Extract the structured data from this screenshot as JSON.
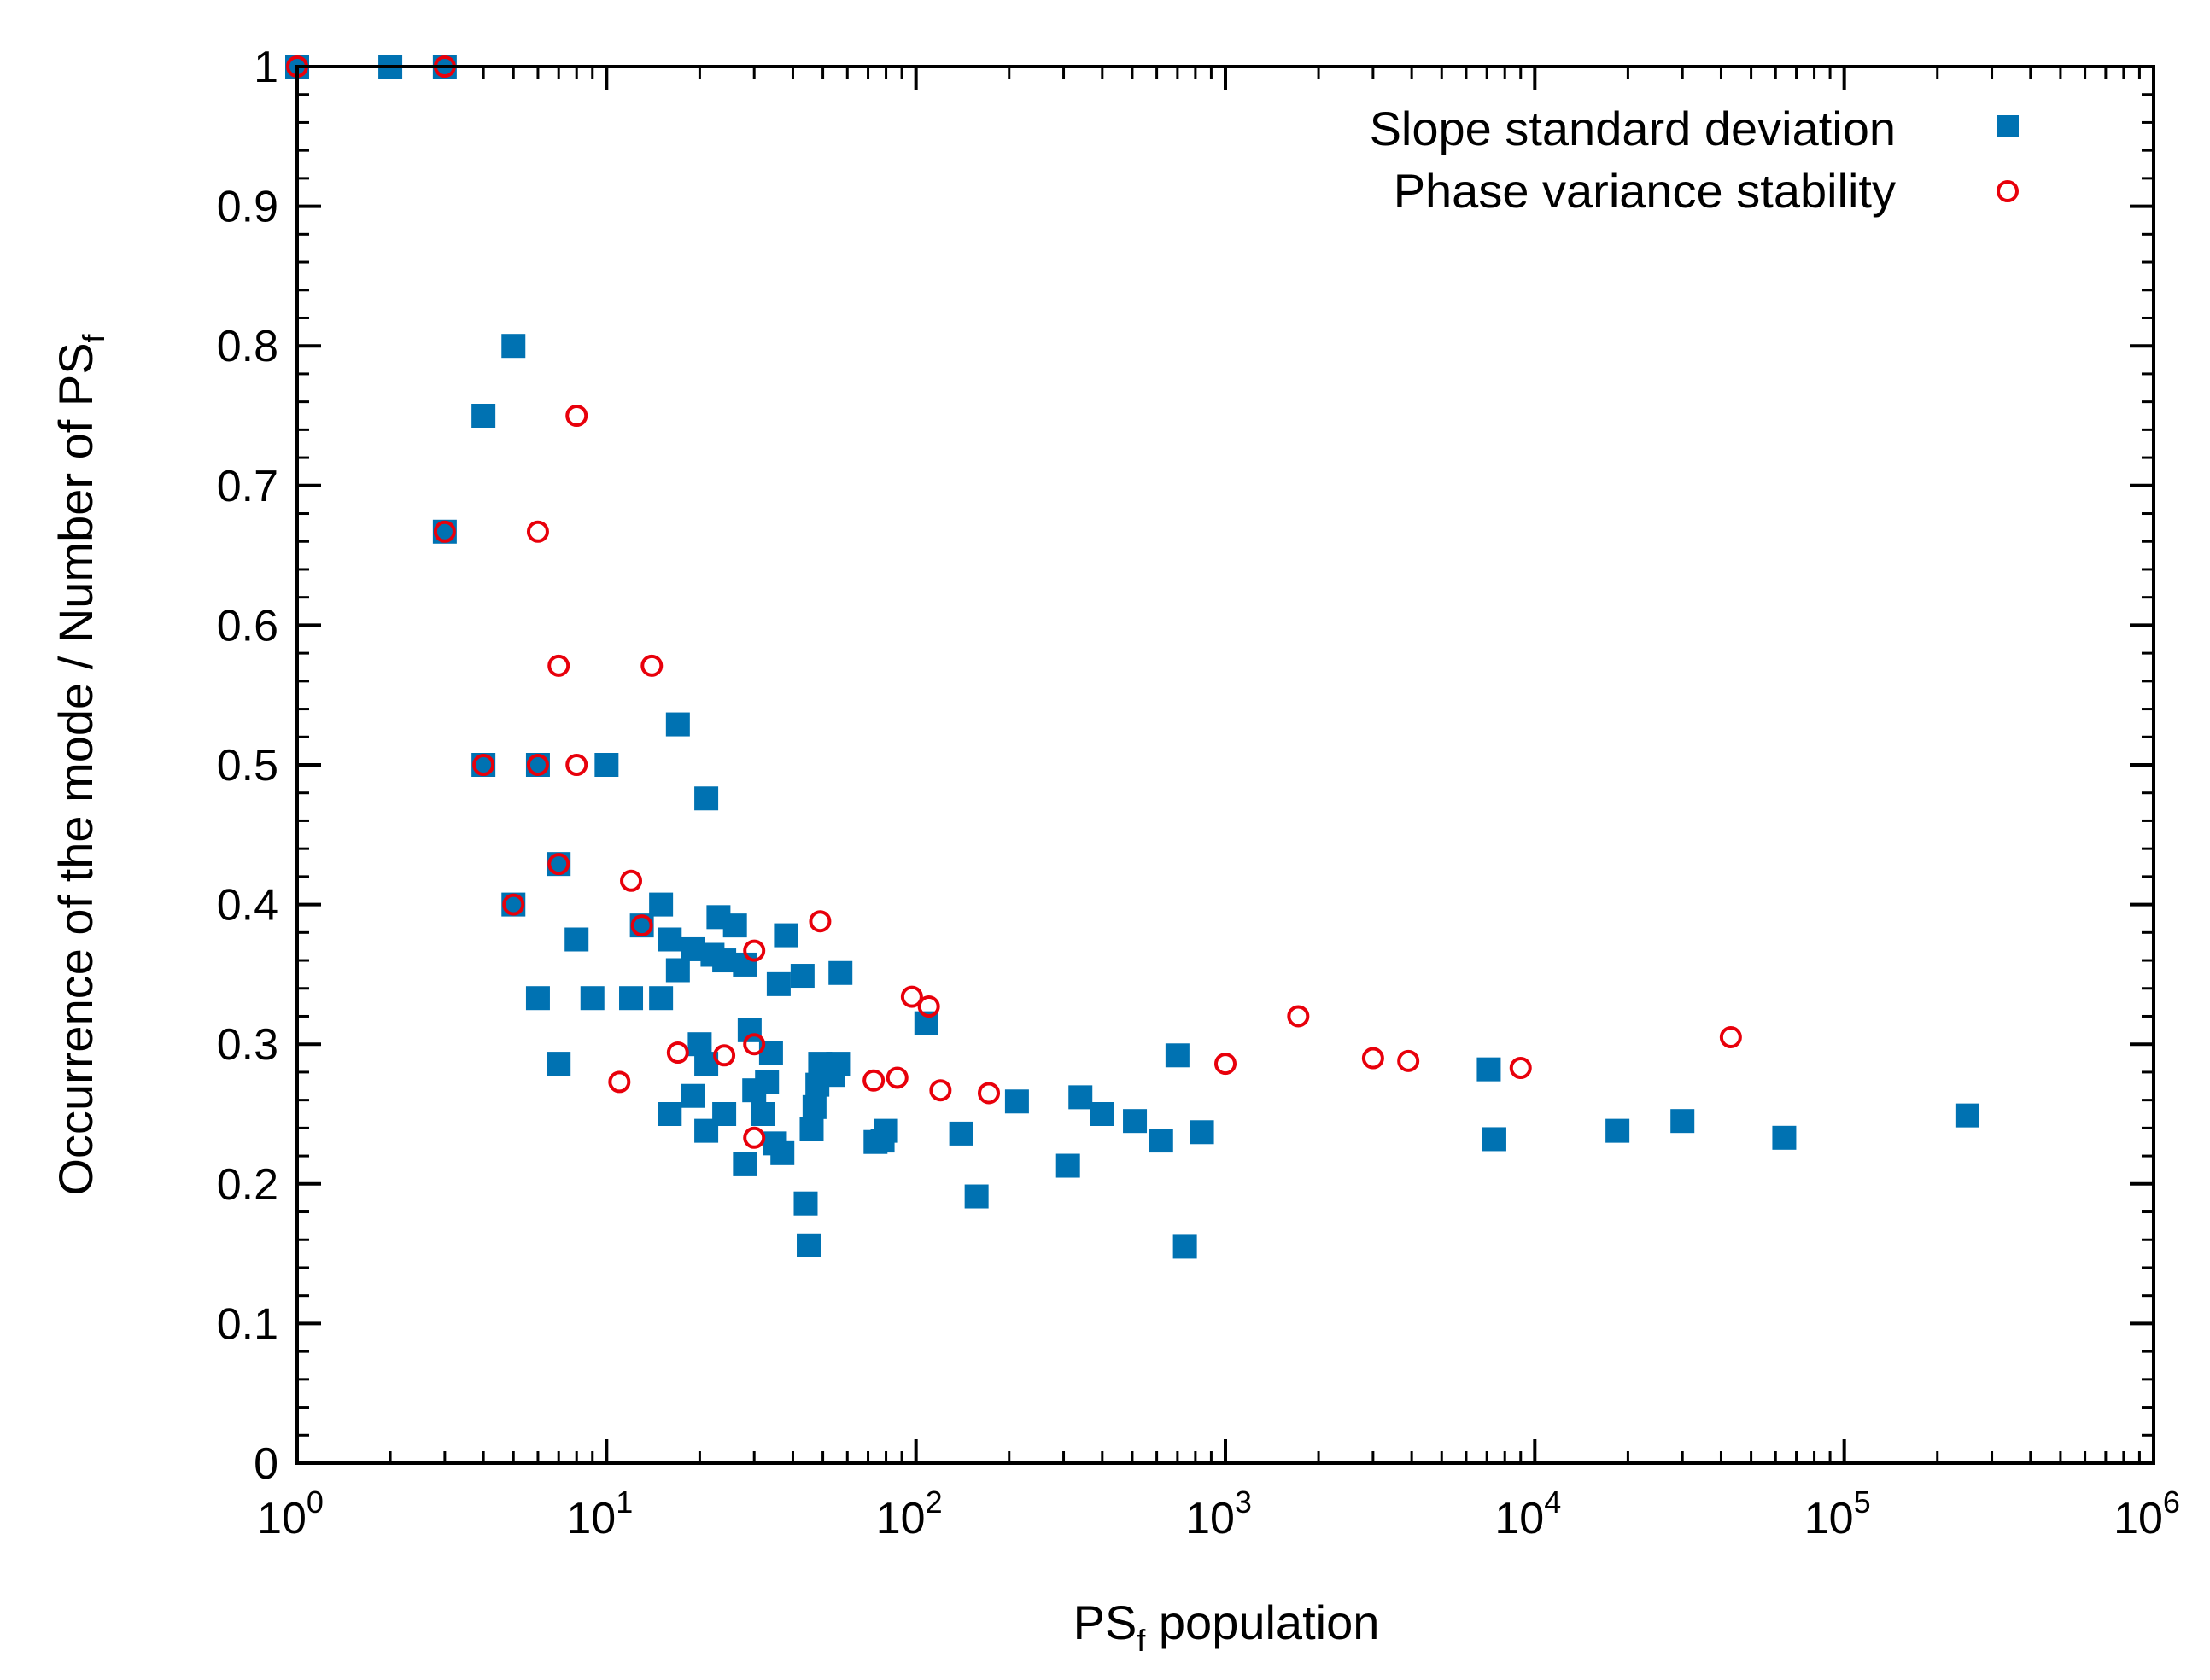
{
  "chart_data": {
    "type": "scatter",
    "title": "",
    "xlabel": {
      "base": "PS",
      "sub": "f",
      "rest": " population"
    },
    "ylabel": {
      "text": "Occurrence of the mode / Number of PS",
      "sub": "f"
    },
    "xscale": "log",
    "xlim": [
      1,
      1000000
    ],
    "ylim": [
      0,
      1
    ],
    "x_ticks": [
      {
        "base": "10",
        "exp": "0",
        "value": 1
      },
      {
        "base": "10",
        "exp": "1",
        "value": 10
      },
      {
        "base": "10",
        "exp": "2",
        "value": 100
      },
      {
        "base": "10",
        "exp": "3",
        "value": 1000
      },
      {
        "base": "10",
        "exp": "4",
        "value": 10000
      },
      {
        "base": "10",
        "exp": "5",
        "value": 100000
      },
      {
        "base": "10",
        "exp": "6",
        "value": 1000000
      }
    ],
    "y_ticks": [
      {
        "label": "0",
        "value": 0
      },
      {
        "label": "0.1",
        "value": 0.1
      },
      {
        "label": "0.2",
        "value": 0.2
      },
      {
        "label": "0.3",
        "value": 0.3
      },
      {
        "label": "0.4",
        "value": 0.4
      },
      {
        "label": "0.5",
        "value": 0.5
      },
      {
        "label": "0.6",
        "value": 0.6
      },
      {
        "label": "0.7",
        "value": 0.7
      },
      {
        "label": "0.8",
        "value": 0.8
      },
      {
        "label": "0.9",
        "value": 0.9
      },
      {
        "label": "1",
        "value": 1
      }
    ],
    "grid": false,
    "legend_position": "top-right",
    "series": [
      {
        "name": "Slope standard deviation",
        "marker": "filled-square",
        "color": "#0072b2",
        "points": [
          [
            1,
            1
          ],
          [
            2,
            1
          ],
          [
            3,
            1
          ],
          [
            3,
            0.667
          ],
          [
            4,
            0.75
          ],
          [
            4,
            0.5
          ],
          [
            5,
            0.8
          ],
          [
            5,
            0.4
          ],
          [
            6,
            0.5
          ],
          [
            6,
            0.333
          ],
          [
            7,
            0.429
          ],
          [
            7,
            0.286
          ],
          [
            8,
            0.375
          ],
          [
            9,
            0.333
          ],
          [
            10,
            0.5
          ],
          [
            12,
            0.333
          ],
          [
            13,
            0.385
          ],
          [
            15,
            0.4
          ],
          [
            15,
            0.333
          ],
          [
            16,
            0.375
          ],
          [
            16,
            0.25
          ],
          [
            17,
            0.529
          ],
          [
            17,
            0.353
          ],
          [
            19,
            0.368
          ],
          [
            19,
            0.263
          ],
          [
            20,
            0.3
          ],
          [
            21,
            0.476
          ],
          [
            21,
            0.286
          ],
          [
            21,
            0.238
          ],
          [
            22,
            0.364
          ],
          [
            23,
            0.391
          ],
          [
            24,
            0.25
          ],
          [
            24,
            0.36
          ],
          [
            26,
            0.385
          ],
          [
            28,
            0.357
          ],
          [
            28,
            0.214
          ],
          [
            29,
            0.31
          ],
          [
            30,
            0.267
          ],
          [
            32,
            0.25
          ],
          [
            33,
            0.273
          ],
          [
            34,
            0.294
          ],
          [
            35,
            0.229
          ],
          [
            36,
            0.343
          ],
          [
            37,
            0.222
          ],
          [
            38,
            0.378
          ],
          [
            43,
            0.349
          ],
          [
            44,
            0.186
          ],
          [
            45,
            0.156
          ],
          [
            46,
            0.239
          ],
          [
            47,
            0.255
          ],
          [
            48,
            0.271
          ],
          [
            49,
            0.286
          ],
          [
            54,
            0.278
          ],
          [
            56,
            0.286
          ],
          [
            57,
            0.351
          ],
          [
            74,
            0.23
          ],
          [
            78,
            0.231
          ],
          [
            80,
            0.238
          ],
          [
            108,
            0.315
          ],
          [
            140,
            0.236
          ],
          [
            157,
            0.191
          ],
          [
            212,
            0.259
          ],
          [
            310,
            0.213
          ],
          [
            340,
            0.262
          ],
          [
            400,
            0.25
          ],
          [
            510,
            0.245
          ],
          [
            620,
            0.231
          ],
          [
            700,
            0.292
          ],
          [
            740,
            0.155
          ],
          [
            840,
            0.237
          ],
          [
            7100,
            0.282
          ],
          [
            7400,
            0.232
          ],
          [
            18500,
            0.238
          ],
          [
            30000,
            0.245
          ],
          [
            64000,
            0.233
          ],
          [
            250000,
            0.249
          ]
        ]
      },
      {
        "name": "Phase variance stability",
        "marker": "open-circle",
        "color": "#e8000b",
        "points": [
          [
            1,
            1
          ],
          [
            3,
            1
          ],
          [
            3,
            0.667
          ],
          [
            4,
            0.5
          ],
          [
            5,
            0.4
          ],
          [
            6,
            0.667
          ],
          [
            6,
            0.5
          ],
          [
            7,
            0.571
          ],
          [
            7,
            0.429
          ],
          [
            8,
            0.75
          ],
          [
            8,
            0.5
          ],
          [
            11,
            0.273
          ],
          [
            12,
            0.417
          ],
          [
            13,
            0.385
          ],
          [
            14,
            0.571
          ],
          [
            17,
            0.294
          ],
          [
            24,
            0.292
          ],
          [
            30,
            0.367
          ],
          [
            30,
            0.3
          ],
          [
            30,
            0.233
          ],
          [
            49,
            0.388
          ],
          [
            73,
            0.274
          ],
          [
            87,
            0.276
          ],
          [
            97,
            0.334
          ],
          [
            110,
            0.327
          ],
          [
            120,
            0.267
          ],
          [
            172,
            0.265
          ],
          [
            1000,
            0.286
          ],
          [
            1720,
            0.32
          ],
          [
            3000,
            0.29
          ],
          [
            3900,
            0.288
          ],
          [
            9000,
            0.283
          ],
          [
            43000,
            0.305
          ]
        ]
      }
    ]
  }
}
